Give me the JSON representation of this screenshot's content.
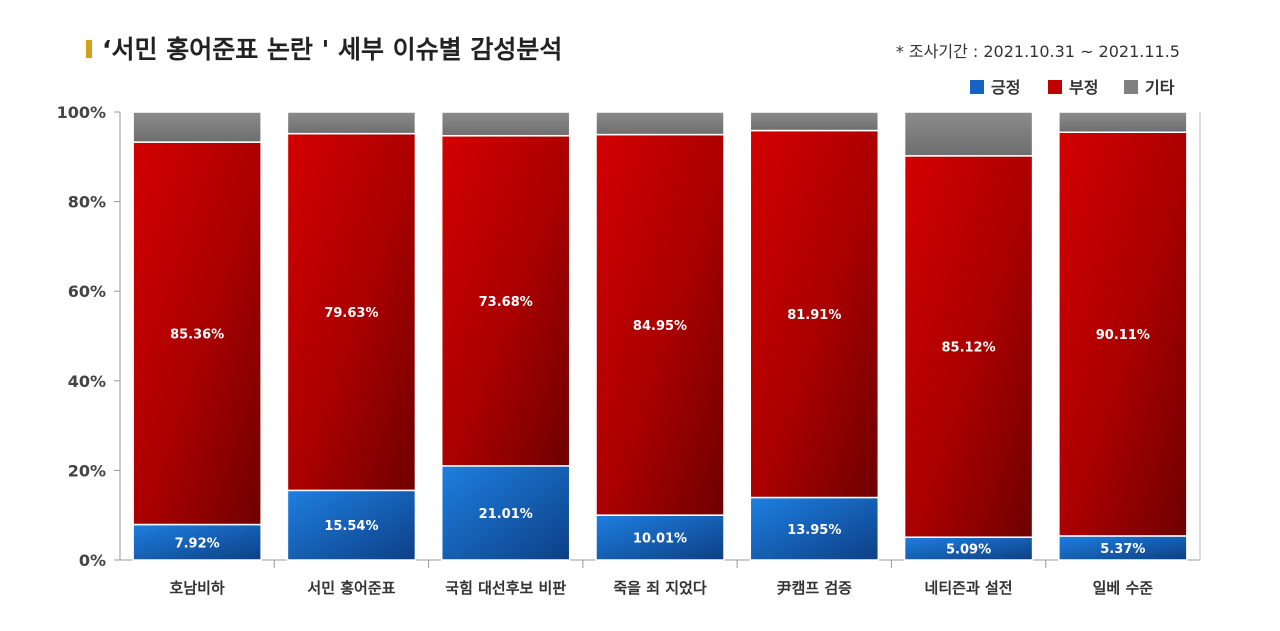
{
  "header": {
    "title": "‘서민 홍어준표 논란 ' 세부 이슈별 감성분석",
    "period": "* 조사기간 : 2021.10.31 ~ 2021.11.5"
  },
  "colors": {
    "positive": "#1565c0",
    "negative": "#c00000",
    "other": "#808080",
    "title_marker": "#d4a017"
  },
  "chart_data": {
    "type": "bar",
    "stacked": "percent",
    "categories": [
      "호남비하",
      "서민 홍어준표",
      "국힘 대선후보 비판",
      "죽을 죄 지었다",
      "尹캠프 검증",
      "네티즌과 설전",
      "일베 수준"
    ],
    "series": [
      {
        "name": "긍정",
        "values": [
          7.92,
          15.54,
          21.01,
          10.01,
          13.95,
          5.09,
          5.37
        ],
        "labels": [
          "7.92%",
          "15.54%",
          "21.01%",
          "10.01%",
          "13.95%",
          "5.09%",
          "5.37%"
        ]
      },
      {
        "name": "부정",
        "values": [
          85.36,
          79.63,
          73.68,
          84.95,
          81.91,
          85.12,
          90.11
        ],
        "labels": [
          "85.36%",
          "79.63%",
          "73.68%",
          "84.95%",
          "81.91%",
          "85.12%",
          "90.11%"
        ]
      },
      {
        "name": "기타",
        "values": [
          6.72,
          4.83,
          5.31,
          5.04,
          4.14,
          9.79,
          4.52
        ]
      }
    ],
    "yticks": [
      "0%",
      "20%",
      "40%",
      "60%",
      "80%",
      "100%"
    ],
    "ylim": [
      0,
      100
    ],
    "grid": false,
    "legend": "top-right"
  }
}
